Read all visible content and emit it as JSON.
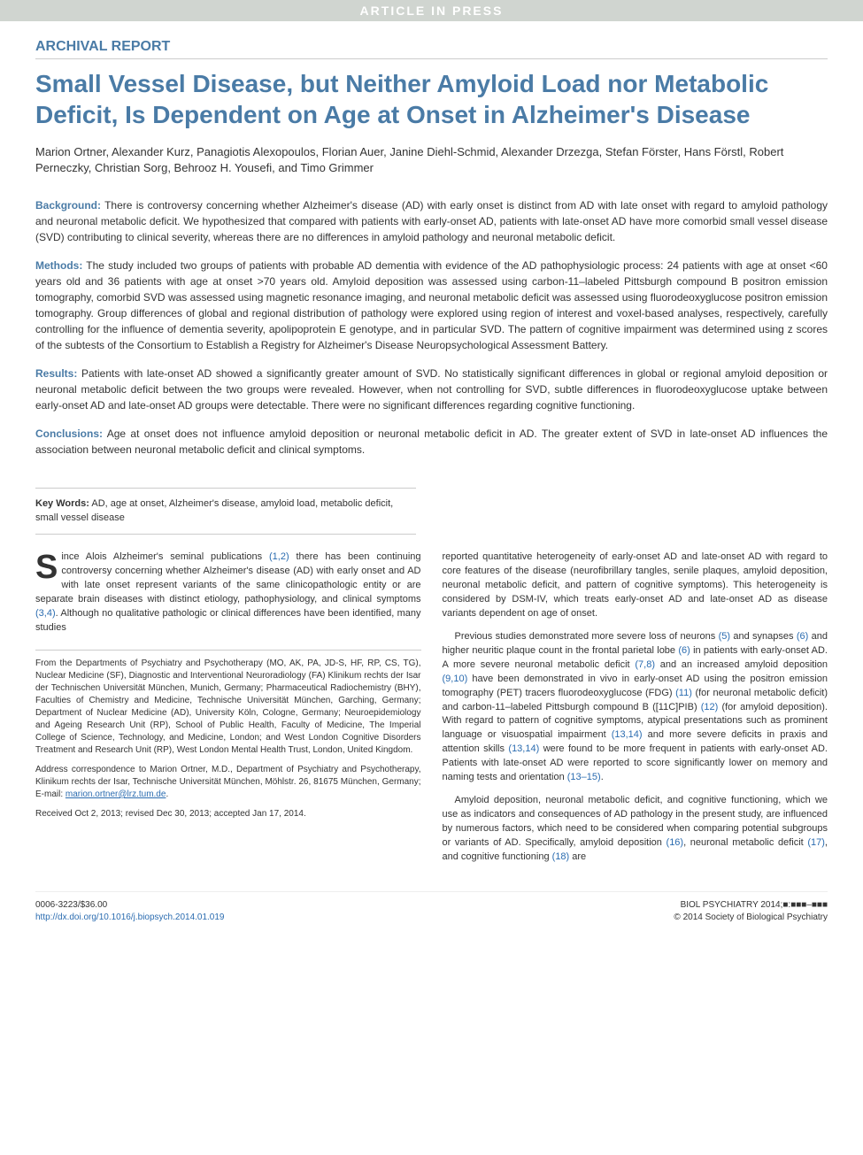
{
  "banner": "ARTICLE IN PRESS",
  "section_type": "Archival Report",
  "title": "Small Vessel Disease, but Neither Amyloid Load nor Metabolic Deficit, Is Dependent on Age at Onset in Alzheimer's Disease",
  "authors": "Marion Ortner, Alexander Kurz, Panagiotis Alexopoulos, Florian Auer, Janine Diehl-Schmid, Alexander Drzezga, Stefan Förster, Hans Förstl, Robert Perneczky, Christian Sorg, Behrooz H. Yousefi, and Timo Grimmer",
  "abstract": {
    "background": {
      "label": "Background:",
      "text": "There is controversy concerning whether Alzheimer's disease (AD) with early onset is distinct from AD with late onset with regard to amyloid pathology and neuronal metabolic deficit. We hypothesized that compared with patients with early-onset AD, patients with late-onset AD have more comorbid small vessel disease (SVD) contributing to clinical severity, whereas there are no differences in amyloid pathology and neuronal metabolic deficit."
    },
    "methods": {
      "label": "Methods:",
      "text": "The study included two groups of patients with probable AD dementia with evidence of the AD pathophysiologic process: 24 patients with age at onset <60 years old and 36 patients with age at onset >70 years old. Amyloid deposition was assessed using carbon-11–labeled Pittsburgh compound B positron emission tomography, comorbid SVD was assessed using magnetic resonance imaging, and neuronal metabolic deficit was assessed using fluorodeoxyglucose positron emission tomography. Group differences of global and regional distribution of pathology were explored using region of interest and voxel-based analyses, respectively, carefully controlling for the influence of dementia severity, apolipoprotein E genotype, and in particular SVD. The pattern of cognitive impairment was determined using z scores of the subtests of the Consortium to Establish a Registry for Alzheimer's Disease Neuropsychological Assessment Battery."
    },
    "results": {
      "label": "Results:",
      "text": "Patients with late-onset AD showed a significantly greater amount of SVD. No statistically significant differences in global or regional amyloid deposition or neuronal metabolic deficit between the two groups were revealed. However, when not controlling for SVD, subtle differences in fluorodeoxyglucose uptake between early-onset AD and late-onset AD groups were detectable. There were no significant differences regarding cognitive functioning."
    },
    "conclusions": {
      "label": "Conclusions:",
      "text": "Age at onset does not influence amyloid deposition or neuronal metabolic deficit in AD. The greater extent of SVD in late-onset AD influences the association between neuronal metabolic deficit and clinical symptoms."
    }
  },
  "keywords": {
    "label": "Key Words:",
    "text": "AD, age at onset, Alzheimer's disease, amyloid load, metabolic deficit, small vessel disease"
  },
  "body": {
    "col1": {
      "dropcap": "S",
      "p1_rest": "ince Alois Alzheimer's seminal publications (1,2) there has been continuing controversy concerning whether Alzheimer's disease (AD) with early onset and AD with late onset represent variants of the same clinicopathologic entity or are separate brain diseases with distinct etiology, pathophysiology, and clinical symptoms (3,4). Although no qualitative pathologic or clinical differences have been identified, many studies"
    },
    "col2": {
      "p1": "reported quantitative heterogeneity of early-onset AD and late-onset AD with regard to core features of the disease (neurofibrillary tangles, senile plaques, amyloid deposition, neuronal metabolic deficit, and pattern of cognitive symptoms). This heterogeneity is considered by DSM-IV, which treats early-onset AD and late-onset AD as disease variants dependent on age of onset.",
      "p2": "Previous studies demonstrated more severe loss of neurons (5) and synapses (6) and higher neuritic plaque count in the frontal parietal lobe (6) in patients with early-onset AD. A more severe neuronal metabolic deficit (7,8) and an increased amyloid deposition (9,10) have been demonstrated in vivo in early-onset AD using the positron emission tomography (PET) tracers fluorodeoxyglucose (FDG) (11) (for neuronal metabolic deficit) and carbon-11–labeled Pittsburgh compound B ([11C]PIB) (12) (for amyloid deposition). With regard to pattern of cognitive symptoms, atypical presentations such as prominent language or visuospatial impairment (13,14) and more severe deficits in praxis and attention skills (13,14) were found to be more frequent in patients with early-onset AD. Patients with late-onset AD were reported to score significantly lower on memory and naming tests and orientation (13–15).",
      "p3": "Amyloid deposition, neuronal metabolic deficit, and cognitive functioning, which we use as indicators and consequences of AD pathology in the present study, are influenced by numerous factors, which need to be considered when comparing potential subgroups or variants of AD. Specifically, amyloid deposition (16), neuronal metabolic deficit (17), and cognitive functioning (18) are"
    }
  },
  "affiliations": {
    "from": "From the Departments of Psychiatry and Psychotherapy (MO, AK, PA, JD-S, HF, RP, CS, TG), Nuclear Medicine (SF), Diagnostic and Interventional Neuroradiology (FA) Klinikum rechts der Isar der Technischen Universität München, Munich, Germany; Pharmaceutical Radiochemistry (BHY), Faculties of Chemistry and Medicine, Technische Universität München, Garching, Germany; Department of Nuclear Medicine (AD), University Köln, Cologne, Germany; Neuroepidemiology and Ageing Research Unit (RP), School of Public Health, Faculty of Medicine, The Imperial College of Science, Technology, and Medicine, London; and West London Cognitive Disorders Treatment and Research Unit (RP), West London Mental Health Trust, London, United Kingdom.",
    "correspondence": "Address correspondence to Marion Ortner, M.D., Department of Psychiatry and Psychotherapy, Klinikum rechts der Isar, Technische Universität München, Möhlstr. 26, 81675 München, Germany; E-mail: ",
    "email": "marion.ortner@lrz.tum.de",
    "received": "Received Oct 2, 2013; revised Dec 30, 2013; accepted Jan 17, 2014."
  },
  "footer": {
    "left_line1": "0006-3223/$36.00",
    "left_line2": "http://dx.doi.org/10.1016/j.biopsych.2014.01.019",
    "right_line1": "BIOL PSYCHIATRY 2014;■:■■■–■■■",
    "right_line2": "© 2014 Society of Biological Psychiatry"
  },
  "refs": {
    "r12": "(1,2)",
    "r34": "(3,4)",
    "r5": "(5)",
    "r6": "(6)",
    "r6b": "(6)",
    "r78": "(7,8)",
    "r910": "(9,10)",
    "r11": "(11)",
    "r12b": "(12)",
    "r1314": "(13,14)",
    "r1314b": "(13,14)",
    "r1315": "(13–15)",
    "r16": "(16)",
    "r17": "(17)",
    "r18": "(18)"
  },
  "colors": {
    "accent": "#4a7ba6",
    "link": "#2b6cb0",
    "banner_bg": "#d0d5d0",
    "text": "#333333",
    "border": "#cccccc"
  }
}
